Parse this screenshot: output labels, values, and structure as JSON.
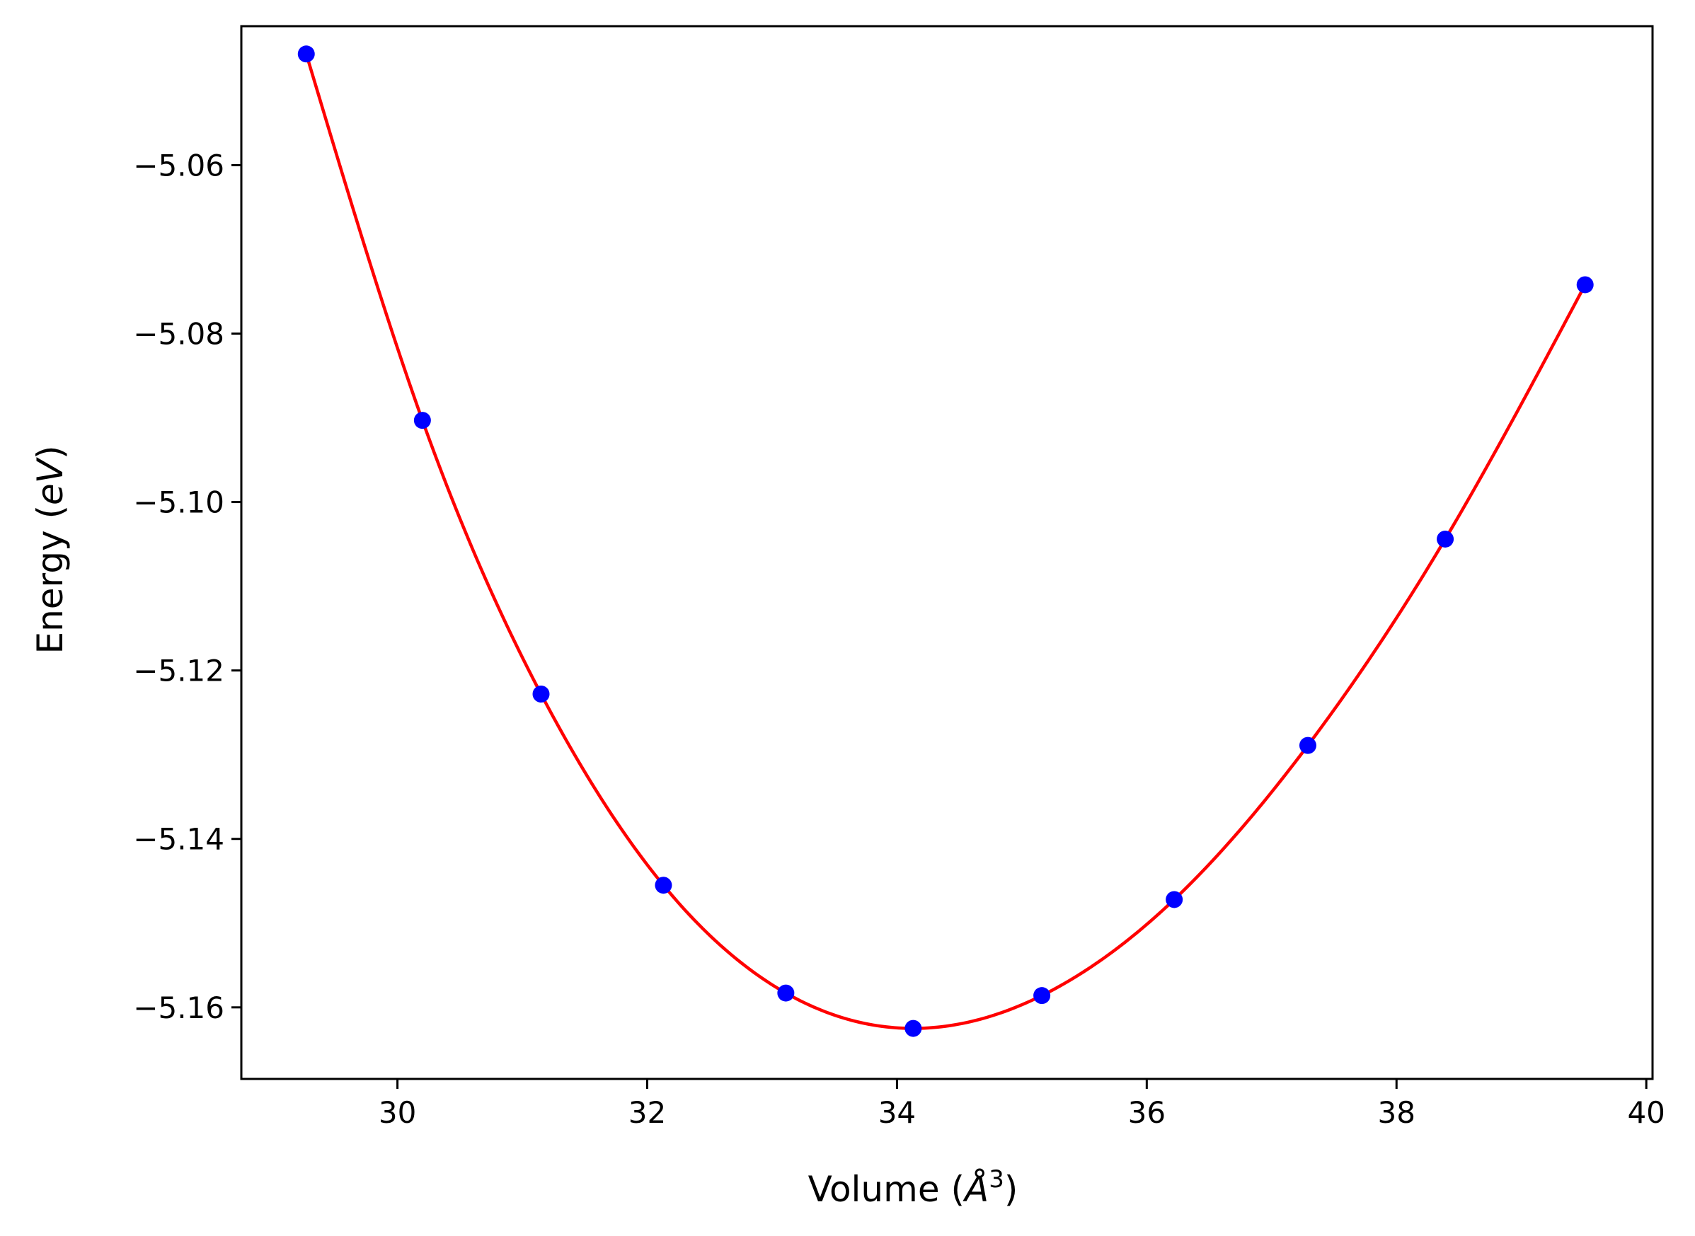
{
  "chart_data": {
    "type": "scatter",
    "xlabel": "Volume (",
    "xlabel_unit": "Å",
    "xlabel_power": "3",
    "xlabel_close": ")",
    "ylabel": "Energy (",
    "ylabel_unit": "eV",
    "ylabel_close": ")",
    "xlim": [
      28.75,
      40.05
    ],
    "ylim": [
      -5.1685,
      -5.0435
    ],
    "xticks": [
      30,
      32,
      34,
      36,
      38,
      40
    ],
    "xtick_labels": [
      "30",
      "32",
      "34",
      "36",
      "38",
      "40"
    ],
    "yticks": [
      -5.06,
      -5.08,
      -5.1,
      -5.12,
      -5.14,
      -5.16
    ],
    "ytick_labels": [
      "−5.06",
      "−5.08",
      "−5.10",
      "−5.12",
      "−5.14",
      "−5.16"
    ],
    "grid": false,
    "series": [
      {
        "kind": "points",
        "color": "#0000ff",
        "x": [
          29.27,
          30.2,
          31.15,
          32.13,
          33.11,
          34.13,
          35.16,
          36.22,
          37.29,
          38.39,
          39.51
        ],
        "y": [
          -5.0468,
          -5.0903,
          -5.1228,
          -5.1455,
          -5.1583,
          -5.1625,
          -5.1586,
          -5.1472,
          -5.1289,
          -5.1044,
          -5.0742
        ]
      },
      {
        "kind": "fit-curve",
        "color": "#ff0000",
        "x": [
          29.27,
          30.2,
          31.15,
          32.13,
          33.11,
          34.13,
          35.16,
          36.22,
          37.29,
          38.39,
          39.51
        ],
        "y": [
          -5.0468,
          -5.0903,
          -5.1228,
          -5.1455,
          -5.1583,
          -5.1625,
          -5.1586,
          -5.1472,
          -5.1289,
          -5.1044,
          -5.0742
        ]
      }
    ]
  }
}
